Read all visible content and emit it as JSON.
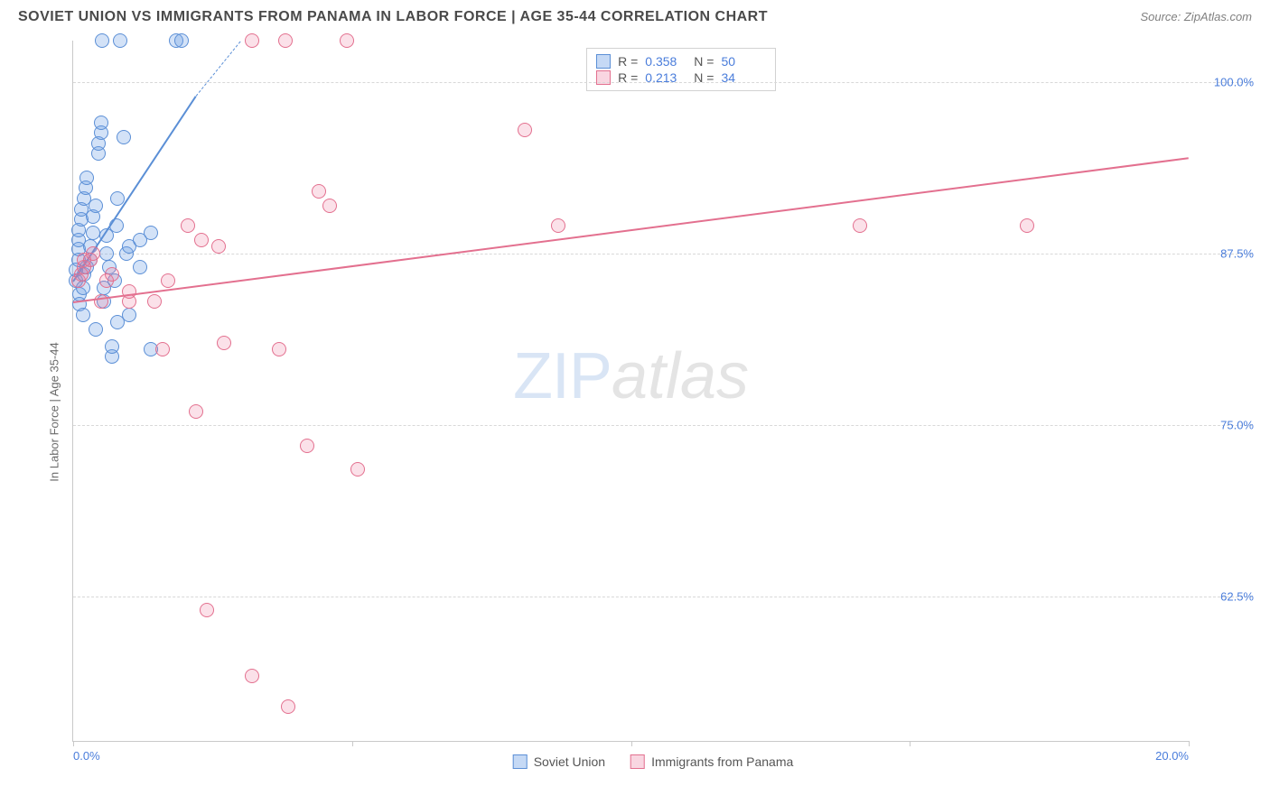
{
  "header": {
    "title": "SOVIET UNION VS IMMIGRANTS FROM PANAMA IN LABOR FORCE | AGE 35-44 CORRELATION CHART",
    "source": "Source: ZipAtlas.com"
  },
  "chart": {
    "type": "scatter",
    "yaxis_label": "In Labor Force | Age 35-44",
    "xlim": [
      0.0,
      20.0
    ],
    "ylim": [
      52.0,
      103.0
    ],
    "yticks": [
      62.5,
      75.0,
      87.5,
      100.0
    ],
    "ytick_labels": [
      "62.5%",
      "75.0%",
      "87.5%",
      "100.0%"
    ],
    "xticks": [
      0.0,
      5.0,
      10.0,
      15.0,
      20.0
    ],
    "x_end_labels": [
      "0.0%",
      "20.0%"
    ],
    "background_color": "#ffffff",
    "grid_color": "#d8d8d8",
    "axis_color": "#c9c9c9",
    "value_color": "#4a7ddb",
    "marker_radius": 8,
    "marker_border_width": 1.2,
    "series": [
      {
        "name": "Soviet Union",
        "fill": "rgba(110,160,230,0.30)",
        "stroke": "#5b8fd6",
        "swatch_fill": "rgba(110,160,230,0.40)",
        "r": 0.358,
        "n": 50,
        "trend": {
          "x1": 0.0,
          "y1": 85.5,
          "x2": 2.2,
          "y2": 99.0,
          "dashed_ext": {
            "x2": 3.0,
            "y2": 103.0
          }
        },
        "points": [
          [
            0.05,
            85.5
          ],
          [
            0.05,
            86.3
          ],
          [
            0.1,
            87.0
          ],
          [
            0.1,
            87.8
          ],
          [
            0.1,
            88.5
          ],
          [
            0.1,
            89.2
          ],
          [
            0.15,
            90.0
          ],
          [
            0.15,
            90.7
          ],
          [
            0.2,
            91.5
          ],
          [
            0.22,
            92.3
          ],
          [
            0.25,
            93.0
          ],
          [
            0.12,
            84.5
          ],
          [
            0.12,
            83.8
          ],
          [
            0.18,
            83.0
          ],
          [
            0.18,
            85.0
          ],
          [
            0.2,
            86.0
          ],
          [
            0.25,
            86.5
          ],
          [
            0.3,
            87.0
          ],
          [
            0.3,
            88.0
          ],
          [
            0.35,
            89.0
          ],
          [
            0.35,
            90.2
          ],
          [
            0.4,
            91.0
          ],
          [
            0.4,
            82.0
          ],
          [
            0.45,
            94.8
          ],
          [
            0.45,
            95.5
          ],
          [
            0.5,
            96.3
          ],
          [
            0.5,
            97.0
          ],
          [
            0.55,
            84.0
          ],
          [
            0.55,
            85.0
          ],
          [
            0.6,
            87.5
          ],
          [
            0.6,
            88.8
          ],
          [
            0.65,
            86.5
          ],
          [
            0.7,
            80.0
          ],
          [
            0.7,
            80.7
          ],
          [
            0.75,
            85.5
          ],
          [
            0.78,
            89.5
          ],
          [
            0.8,
            82.5
          ],
          [
            0.8,
            91.5
          ],
          [
            0.85,
            103.0
          ],
          [
            0.9,
            96.0
          ],
          [
            0.52,
            103.0
          ],
          [
            0.95,
            87.5
          ],
          [
            1.0,
            88.0
          ],
          [
            1.0,
            83.0
          ],
          [
            1.2,
            86.5
          ],
          [
            1.2,
            88.5
          ],
          [
            1.4,
            80.5
          ],
          [
            1.85,
            103.0
          ],
          [
            1.95,
            103.0
          ],
          [
            1.4,
            89.0
          ]
        ]
      },
      {
        "name": "Immigrants from Panama",
        "fill": "rgba(235,120,155,0.22)",
        "stroke": "#e3708f",
        "swatch_fill": "rgba(235,120,155,0.30)",
        "r": 0.213,
        "n": 34,
        "trend": {
          "x1": 0.0,
          "y1": 84.0,
          "x2": 20.0,
          "y2": 94.5
        },
        "points": [
          [
            0.1,
            85.5
          ],
          [
            0.15,
            86.0
          ],
          [
            0.2,
            86.5
          ],
          [
            0.2,
            87.0
          ],
          [
            0.3,
            87.0
          ],
          [
            0.35,
            87.5
          ],
          [
            0.5,
            84.0
          ],
          [
            0.6,
            85.5
          ],
          [
            0.7,
            86.0
          ],
          [
            1.0,
            84.0
          ],
          [
            1.0,
            84.7
          ],
          [
            1.45,
            84.0
          ],
          [
            1.6,
            80.5
          ],
          [
            1.7,
            85.5
          ],
          [
            2.05,
            89.5
          ],
          [
            2.2,
            76.0
          ],
          [
            2.3,
            88.5
          ],
          [
            2.4,
            61.5
          ],
          [
            2.6,
            88.0
          ],
          [
            2.7,
            81.0
          ],
          [
            3.2,
            103.0
          ],
          [
            3.2,
            56.7
          ],
          [
            3.7,
            80.5
          ],
          [
            3.8,
            103.0
          ],
          [
            3.85,
            54.5
          ],
          [
            4.2,
            73.5
          ],
          [
            4.4,
            92.0
          ],
          [
            4.6,
            91.0
          ],
          [
            4.9,
            103.0
          ],
          [
            5.1,
            71.8
          ],
          [
            8.1,
            96.5
          ],
          [
            8.7,
            89.5
          ],
          [
            14.1,
            89.5
          ],
          [
            17.1,
            89.5
          ]
        ]
      }
    ]
  },
  "legend": {
    "items": [
      "Soviet Union",
      "Immigrants from Panama"
    ]
  },
  "watermark": {
    "part1": "ZIP",
    "part2": "atlas"
  }
}
